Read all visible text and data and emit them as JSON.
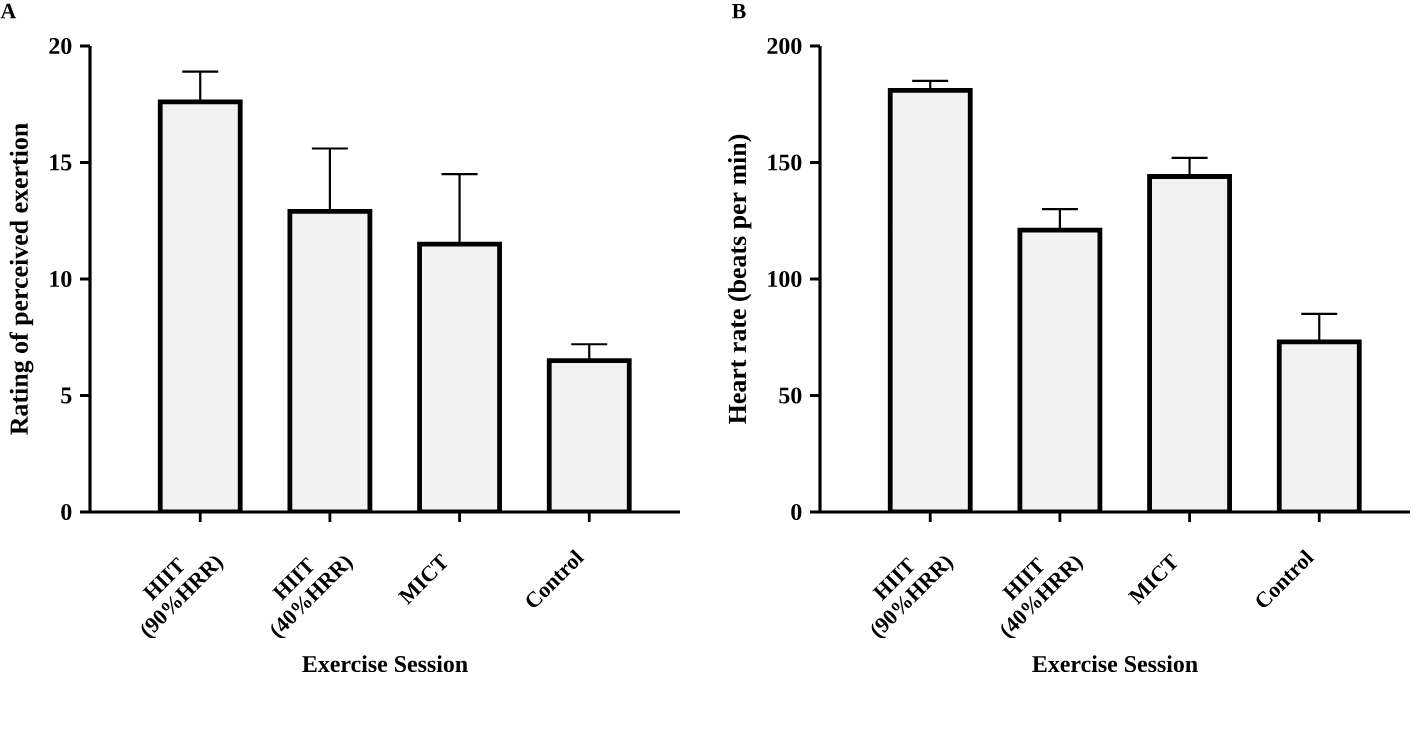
{
  "chart_data": [
    {
      "type": "bar",
      "title": "A",
      "xlabel": "Exercise Session",
      "ylabel": "Rating of perceived exertion",
      "categories": [
        "HIIT (90%HRR)",
        "HIIT (40%HRR)",
        "MICT",
        "Control"
      ],
      "values": [
        17.6,
        12.9,
        11.5,
        6.5
      ],
      "errors": [
        1.3,
        2.7,
        3.0,
        0.7
      ],
      "color": "#f2f2f2",
      "ylim": [
        0,
        20
      ],
      "yticks": [
        0,
        5,
        10,
        15,
        20
      ],
      "grid": false
    },
    {
      "type": "bar",
      "title": "B",
      "xlabel": "Exercise Session",
      "ylabel": "Heart rate (beats per min)",
      "categories": [
        "HIIT (90%HRR)",
        "HIIT (40%HRR)",
        "MICT",
        "Control"
      ],
      "values": [
        181,
        121,
        144,
        73
      ],
      "errors": [
        4,
        9,
        8,
        12
      ],
      "color": "#f2f2f2",
      "ylim": [
        0,
        200
      ],
      "yticks": [
        0,
        50,
        100,
        150,
        200
      ],
      "grid": false
    }
  ]
}
